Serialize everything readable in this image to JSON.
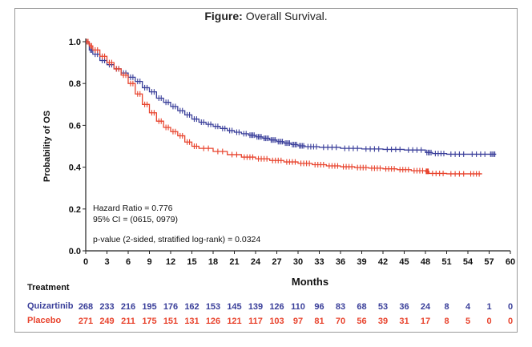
{
  "title": {
    "bold": "Figure:",
    "text": "Overall Survival."
  },
  "chart_data": {
    "type": "line",
    "title": "Figure: Overall Survival.",
    "xlabel": "Months",
    "ylabel": "Probability of OS",
    "xlim": [
      0,
      60
    ],
    "ylim": [
      0.0,
      1.0
    ],
    "xticks": [
      "0",
      "3",
      "6",
      "9",
      "12",
      "15",
      "18",
      "21",
      "24",
      "27",
      "30",
      "33",
      "36",
      "39",
      "42",
      "45",
      "48",
      "51",
      "54",
      "57",
      "60"
    ],
    "yticks": [
      "0.0",
      "0.2",
      "0.4",
      "0.6",
      "0.8",
      "1.0"
    ],
    "grid": false,
    "series": [
      {
        "name": "Quizartinib",
        "color": "#3a3f9a",
        "points": [
          [
            0,
            1.0
          ],
          [
            0.5,
            0.96
          ],
          [
            1,
            0.94
          ],
          [
            2,
            0.91
          ],
          [
            3,
            0.89
          ],
          [
            4,
            0.87
          ],
          [
            5,
            0.85
          ],
          [
            6,
            0.83
          ],
          [
            7,
            0.81
          ],
          [
            8,
            0.78
          ],
          [
            9,
            0.76
          ],
          [
            10,
            0.73
          ],
          [
            11,
            0.71
          ],
          [
            12,
            0.69
          ],
          [
            13,
            0.67
          ],
          [
            14,
            0.65
          ],
          [
            15,
            0.63
          ],
          [
            16,
            0.615
          ],
          [
            17,
            0.605
          ],
          [
            18,
            0.595
          ],
          [
            19,
            0.585
          ],
          [
            20,
            0.575
          ],
          [
            21,
            0.567
          ],
          [
            22,
            0.56
          ],
          [
            23,
            0.553
          ],
          [
            24,
            0.545
          ],
          [
            25,
            0.538
          ],
          [
            26,
            0.53
          ],
          [
            27,
            0.522
          ],
          [
            28,
            0.515
          ],
          [
            29,
            0.508
          ],
          [
            30,
            0.502
          ],
          [
            31,
            0.498
          ],
          [
            33,
            0.495
          ],
          [
            36,
            0.49
          ],
          [
            39,
            0.487
          ],
          [
            42,
            0.485
          ],
          [
            45,
            0.482
          ],
          [
            48,
            0.47
          ],
          [
            49,
            0.465
          ],
          [
            51,
            0.462
          ],
          [
            54,
            0.462
          ],
          [
            57,
            0.462
          ],
          [
            58,
            0.462
          ]
        ]
      },
      {
        "name": "Placebo",
        "color": "#e8442e",
        "points": [
          [
            0,
            1.0
          ],
          [
            0.5,
            0.98
          ],
          [
            1,
            0.96
          ],
          [
            2,
            0.93
          ],
          [
            3,
            0.9
          ],
          [
            4,
            0.87
          ],
          [
            5,
            0.84
          ],
          [
            6,
            0.8
          ],
          [
            7,
            0.75
          ],
          [
            8,
            0.7
          ],
          [
            9,
            0.66
          ],
          [
            10,
            0.62
          ],
          [
            11,
            0.59
          ],
          [
            12,
            0.57
          ],
          [
            13,
            0.55
          ],
          [
            14,
            0.52
          ],
          [
            15,
            0.5
          ],
          [
            16,
            0.49
          ],
          [
            18,
            0.475
          ],
          [
            20,
            0.46
          ],
          [
            22,
            0.448
          ],
          [
            24,
            0.44
          ],
          [
            26,
            0.432
          ],
          [
            28,
            0.425
          ],
          [
            30,
            0.418
          ],
          [
            32,
            0.412
          ],
          [
            34,
            0.406
          ],
          [
            36,
            0.402
          ],
          [
            38,
            0.398
          ],
          [
            40,
            0.395
          ],
          [
            42,
            0.392
          ],
          [
            44,
            0.388
          ],
          [
            46,
            0.383
          ],
          [
            48,
            0.38
          ],
          [
            48.5,
            0.37
          ],
          [
            51,
            0.368
          ],
          [
            54,
            0.368
          ],
          [
            56,
            0.368
          ]
        ]
      }
    ],
    "annotations": [
      "Hazard Ratio = 0.776",
      "95% CI = (0615, 0979)",
      "p-value (2-sided, stratified log-rank) = 0.0324"
    ],
    "risk_table": {
      "title": "Treatment",
      "rows": [
        {
          "name": "Quizartinib",
          "color": "#3a3f9a",
          "values": [
            "268",
            "233",
            "216",
            "195",
            "176",
            "162",
            "153",
            "145",
            "139",
            "126",
            "110",
            "96",
            "83",
            "68",
            "53",
            "36",
            "24",
            "8",
            "4",
            "1",
            "0"
          ]
        },
        {
          "name": "Placebo",
          "color": "#e8442e",
          "values": [
            "271",
            "249",
            "211",
            "175",
            "151",
            "131",
            "126",
            "121",
            "117",
            "103",
            "97",
            "81",
            "70",
            "56",
            "39",
            "31",
            "17",
            "8",
            "5",
            "0",
            "0"
          ]
        }
      ]
    }
  }
}
